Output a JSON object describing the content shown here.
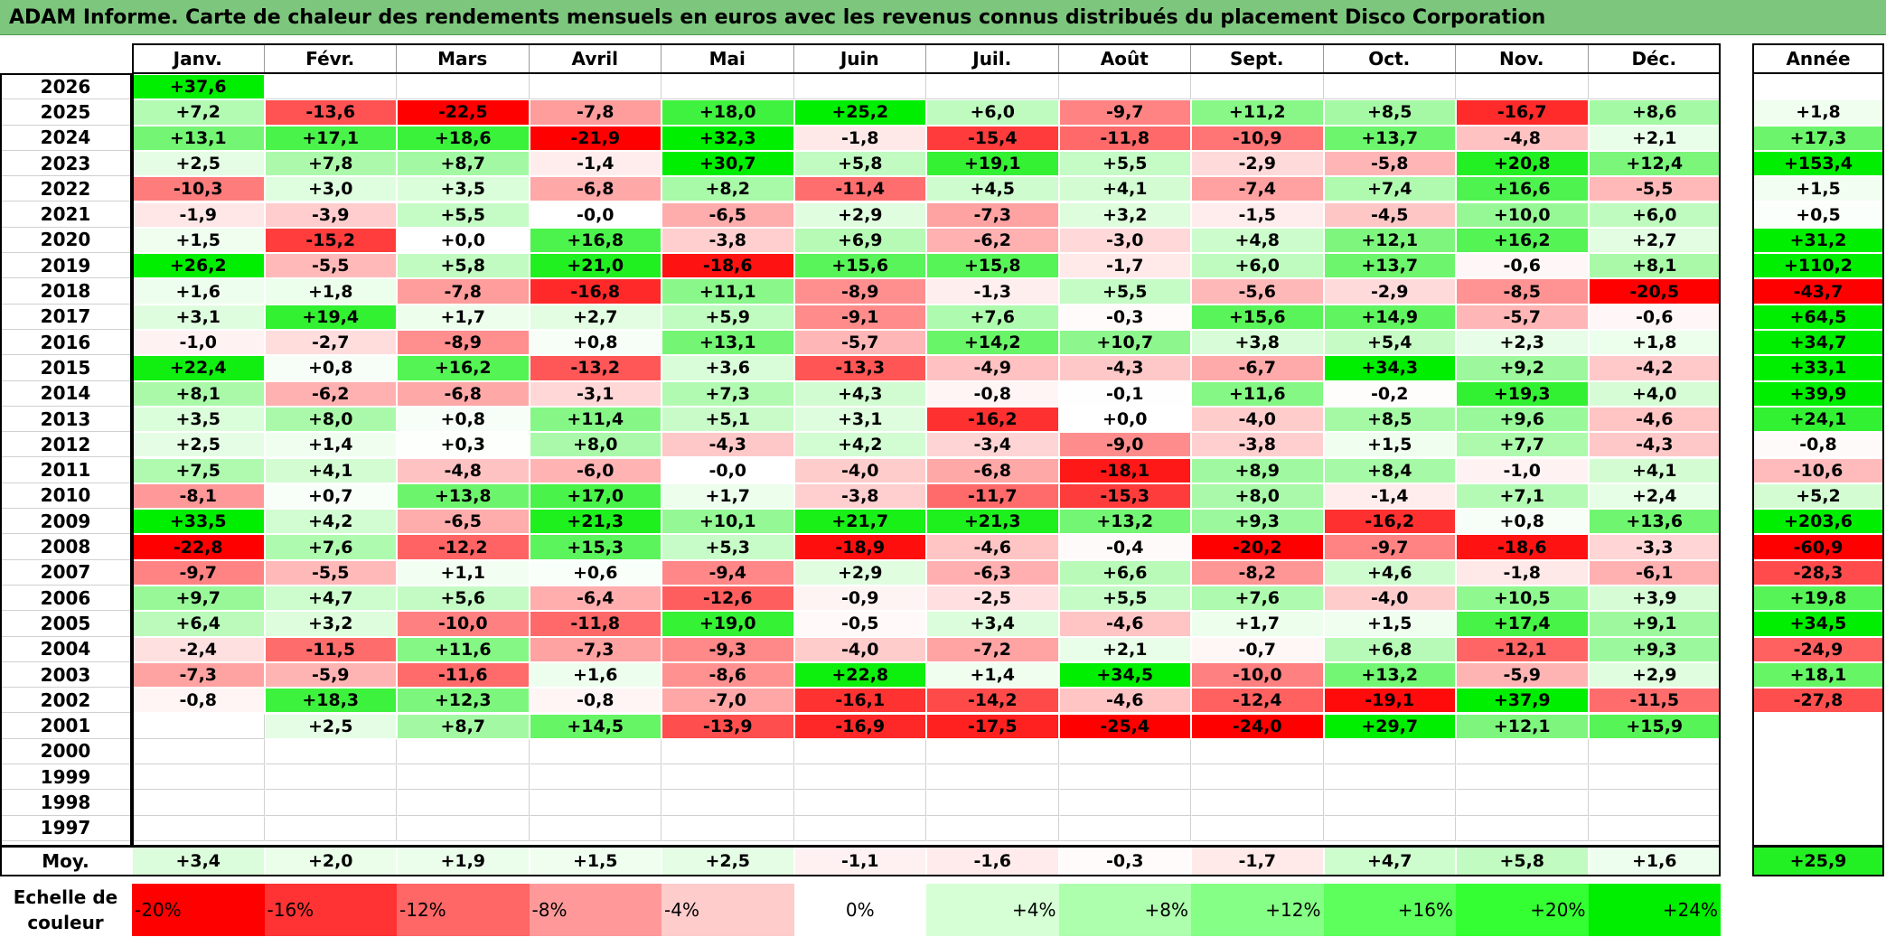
{
  "title": "ADAM Informe. Carte de chaleur des rendements mensuels en euros avec les revenus connus distribués du placement Disco Corporation",
  "chart_data": {
    "type": "heatmap",
    "title": "ADAM Informe. Carte de chaleur des rendements mensuels en euros avec les revenus connus distribués du placement Disco Corporation",
    "months": [
      "Janv.",
      "Févr.",
      "Mars",
      "Avril",
      "Mai",
      "Juin",
      "Juil.",
      "Août",
      "Sept.",
      "Oct.",
      "Nov.",
      "Déc."
    ],
    "year_header": "Année",
    "rows": [
      {
        "year": "2026",
        "months": [
          "+37,6",
          "",
          "",
          "",
          "",
          "",
          "",
          "",
          "",
          "",
          "",
          ""
        ],
        "annual": ""
      },
      {
        "year": "2025",
        "months": [
          "+7,2",
          "-13,6",
          "-22,5",
          "-7,8",
          "+18,0",
          "+25,2",
          "+6,0",
          "-9,7",
          "+11,2",
          "+8,5",
          "-16,7",
          "+8,6"
        ],
        "annual": "+1,8"
      },
      {
        "year": "2024",
        "months": [
          "+13,1",
          "+17,1",
          "+18,6",
          "-21,9",
          "+32,3",
          "-1,8",
          "-15,4",
          "-11,8",
          "-10,9",
          "+13,7",
          "-4,8",
          "+2,1"
        ],
        "annual": "+17,3"
      },
      {
        "year": "2023",
        "months": [
          "+2,5",
          "+7,8",
          "+8,7",
          "-1,4",
          "+30,7",
          "+5,8",
          "+19,1",
          "+5,5",
          "-2,9",
          "-5,8",
          "+20,8",
          "+12,4"
        ],
        "annual": "+153,4"
      },
      {
        "year": "2022",
        "months": [
          "-10,3",
          "+3,0",
          "+3,5",
          "-6,8",
          "+8,2",
          "-11,4",
          "+4,5",
          "+4,1",
          "-7,4",
          "+7,4",
          "+16,6",
          "-5,5"
        ],
        "annual": "+1,5"
      },
      {
        "year": "2021",
        "months": [
          "-1,9",
          "-3,9",
          "+5,5",
          "-0,0",
          "-6,5",
          "+2,9",
          "-7,3",
          "+3,2",
          "-1,5",
          "-4,5",
          "+10,0",
          "+6,0"
        ],
        "annual": "+0,5"
      },
      {
        "year": "2020",
        "months": [
          "+1,5",
          "-15,2",
          "+0,0",
          "+16,8",
          "-3,8",
          "+6,9",
          "-6,2",
          "-3,0",
          "+4,8",
          "+12,1",
          "+16,2",
          "+2,7"
        ],
        "annual": "+31,2"
      },
      {
        "year": "2019",
        "months": [
          "+26,2",
          "-5,5",
          "+5,8",
          "+21,0",
          "-18,6",
          "+15,6",
          "+15,8",
          "-1,7",
          "+6,0",
          "+13,7",
          "-0,6",
          "+8,1"
        ],
        "annual": "+110,2"
      },
      {
        "year": "2018",
        "months": [
          "+1,6",
          "+1,8",
          "-7,8",
          "-16,8",
          "+11,1",
          "-8,9",
          "-1,3",
          "+5,5",
          "-5,6",
          "-2,9",
          "-8,5",
          "-20,5"
        ],
        "annual": "-43,7"
      },
      {
        "year": "2017",
        "months": [
          "+3,1",
          "+19,4",
          "+1,7",
          "+2,7",
          "+5,9",
          "-9,1",
          "+7,6",
          "-0,3",
          "+15,6",
          "+14,9",
          "-5,7",
          "-0,6"
        ],
        "annual": "+64,5"
      },
      {
        "year": "2016",
        "months": [
          "-1,0",
          "-2,7",
          "-8,9",
          "+0,8",
          "+13,1",
          "-5,7",
          "+14,2",
          "+10,7",
          "+3,8",
          "+5,4",
          "+2,3",
          "+1,8"
        ],
        "annual": "+34,7"
      },
      {
        "year": "2015",
        "months": [
          "+22,4",
          "+0,8",
          "+16,2",
          "-13,2",
          "+3,6",
          "-13,3",
          "-4,9",
          "-4,3",
          "-6,7",
          "+34,3",
          "+9,2",
          "-4,2"
        ],
        "annual": "+33,1"
      },
      {
        "year": "2014",
        "months": [
          "+8,1",
          "-6,2",
          "-6,8",
          "-3,1",
          "+7,3",
          "+4,3",
          "-0,8",
          "-0,1",
          "+11,6",
          "-0,2",
          "+19,3",
          "+4,0"
        ],
        "annual": "+39,9"
      },
      {
        "year": "2013",
        "months": [
          "+3,5",
          "+8,0",
          "+0,8",
          "+11,4",
          "+5,1",
          "+3,1",
          "-16,2",
          "+0,0",
          "-4,0",
          "+8,5",
          "+9,6",
          "-4,6"
        ],
        "annual": "+24,1"
      },
      {
        "year": "2012",
        "months": [
          "+2,5",
          "+1,4",
          "+0,3",
          "+8,0",
          "-4,3",
          "+4,2",
          "-3,4",
          "-9,0",
          "-3,8",
          "+1,5",
          "+7,7",
          "-4,3"
        ],
        "annual": "-0,8"
      },
      {
        "year": "2011",
        "months": [
          "+7,5",
          "+4,1",
          "-4,8",
          "-6,0",
          "-0,0",
          "-4,0",
          "-6,8",
          "-18,1",
          "+8,9",
          "+8,4",
          "-1,0",
          "+4,1"
        ],
        "annual": "-10,6"
      },
      {
        "year": "2010",
        "months": [
          "-8,1",
          "+0,7",
          "+13,8",
          "+17,0",
          "+1,7",
          "-3,8",
          "-11,7",
          "-15,3",
          "+8,0",
          "-1,4",
          "+7,1",
          "+2,4"
        ],
        "annual": "+5,2"
      },
      {
        "year": "2009",
        "months": [
          "+33,5",
          "+4,2",
          "-6,5",
          "+21,3",
          "+10,1",
          "+21,7",
          "+21,3",
          "+13,2",
          "+9,3",
          "-16,2",
          "+0,8",
          "+13,6"
        ],
        "annual": "+203,6"
      },
      {
        "year": "2008",
        "months": [
          "-22,8",
          "+7,6",
          "-12,2",
          "+15,3",
          "+5,3",
          "-18,9",
          "-4,6",
          "-0,4",
          "-20,2",
          "-9,7",
          "-18,6",
          "-3,3"
        ],
        "annual": "-60,9"
      },
      {
        "year": "2007",
        "months": [
          "-9,7",
          "-5,5",
          "+1,1",
          "+0,6",
          "-9,4",
          "+2,9",
          "-6,3",
          "+6,6",
          "-8,2",
          "+4,6",
          "-1,8",
          "-6,1"
        ],
        "annual": "-28,3"
      },
      {
        "year": "2006",
        "months": [
          "+9,7",
          "+4,7",
          "+5,6",
          "-6,4",
          "-12,6",
          "-0,9",
          "-2,5",
          "+5,5",
          "+7,6",
          "-4,0",
          "+10,5",
          "+3,9"
        ],
        "annual": "+19,8"
      },
      {
        "year": "2005",
        "months": [
          "+6,4",
          "+3,2",
          "-10,0",
          "-11,8",
          "+19,0",
          "-0,5",
          "+3,4",
          "-4,6",
          "+1,7",
          "+1,5",
          "+17,4",
          "+9,1"
        ],
        "annual": "+34,5"
      },
      {
        "year": "2004",
        "months": [
          "-2,4",
          "-11,5",
          "+11,6",
          "-7,3",
          "-9,3",
          "-4,0",
          "-7,2",
          "+2,1",
          "-0,7",
          "+6,8",
          "-12,1",
          "+9,3"
        ],
        "annual": "-24,9"
      },
      {
        "year": "2003",
        "months": [
          "-7,3",
          "-5,9",
          "-11,6",
          "+1,6",
          "-8,6",
          "+22,8",
          "+1,4",
          "+34,5",
          "-10,0",
          "+13,2",
          "-5,9",
          "+2,9"
        ],
        "annual": "+18,1"
      },
      {
        "year": "2002",
        "months": [
          "-0,8",
          "+18,3",
          "+12,3",
          "-0,8",
          "-7,0",
          "-16,1",
          "-14,2",
          "-4,6",
          "-12,4",
          "-19,1",
          "+37,9",
          "-11,5"
        ],
        "annual": "-27,8"
      },
      {
        "year": "2001",
        "months": [
          "",
          "+2,5",
          "+8,7",
          "+14,5",
          "-13,9",
          "-16,9",
          "-17,5",
          "-25,4",
          "-24,0",
          "+29,7",
          "+12,1",
          "+15,9"
        ],
        "annual": ""
      },
      {
        "year": "2000",
        "months": [
          "",
          "",
          "",
          "",
          "",
          "",
          "",
          "",
          "",
          "",
          "",
          ""
        ],
        "annual": ""
      },
      {
        "year": "1999",
        "months": [
          "",
          "",
          "",
          "",
          "",
          "",
          "",
          "",
          "",
          "",
          "",
          ""
        ],
        "annual": ""
      },
      {
        "year": "1998",
        "months": [
          "",
          "",
          "",
          "",
          "",
          "",
          "",
          "",
          "",
          "",
          "",
          ""
        ],
        "annual": ""
      },
      {
        "year": "1997",
        "months": [
          "",
          "",
          "",
          "",
          "",
          "",
          "",
          "",
          "",
          "",
          "",
          ""
        ],
        "annual": ""
      }
    ],
    "average": {
      "label": "Moy.",
      "months": [
        "+3,4",
        "+2,0",
        "+1,9",
        "+1,5",
        "+2,5",
        "-1,1",
        "-1,6",
        "-0,3",
        "-1,7",
        "+4,7",
        "+5,8",
        "+1,6"
      ],
      "annual": "+25,9"
    },
    "color_scale": {
      "label": "Echelle de couleur",
      "steps": [
        "-20%",
        "-16%",
        "-12%",
        "-8%",
        "-4%",
        "0%",
        "+4%",
        "+8%",
        "+12%",
        "+16%",
        "+20%",
        "+24%"
      ],
      "colors": [
        "#ff0000",
        "#ff3333",
        "#ff6666",
        "#ff9999",
        "#ffcccc",
        "#ffffff",
        "#d6ffd6",
        "#adffad",
        "#85ff85",
        "#5cff5c",
        "#33ff33",
        "#00ee00"
      ]
    },
    "colors": {
      "negative_max": "#ff0000",
      "neutral": "#ffffff",
      "positive_max": "#00ee00",
      "title_bar": "#7dc67d"
    }
  }
}
